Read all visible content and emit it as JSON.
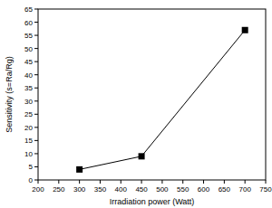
{
  "chart_data": {
    "type": "line",
    "x_label": "Irradiation power (Watt)",
    "y_label": "Sensitivity (s=Ra/Rg)",
    "x": [
      300,
      450,
      700
    ],
    "values": [
      4,
      9,
      57
    ],
    "color": "#000000",
    "marker": "square",
    "line_style": "solid",
    "xlim": [
      200,
      750
    ],
    "xticks": [
      200,
      250,
      300,
      350,
      400,
      450,
      500,
      550,
      600,
      650,
      700,
      750
    ],
    "ylim": [
      0,
      65
    ],
    "yticks": [
      0,
      5,
      10,
      15,
      20,
      25,
      30,
      35,
      40,
      45,
      50,
      55,
      60,
      65
    ],
    "grid": false
  }
}
